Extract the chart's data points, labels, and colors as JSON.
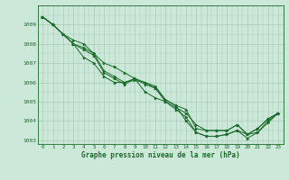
{
  "bg_color": "#cce8d8",
  "grid_color": "#aaccbb",
  "line_color": "#1a6b2a",
  "xlabel": "Graphe pression niveau de la mer (hPa)",
  "ylim": [
    1002.8,
    1009.6
  ],
  "xlim": [
    -0.5,
    23.5
  ],
  "yticks": [
    1003,
    1004,
    1005,
    1006,
    1007,
    1008,
    1009
  ],
  "xticks": [
    0,
    1,
    2,
    3,
    4,
    5,
    6,
    7,
    8,
    9,
    10,
    11,
    12,
    13,
    14,
    15,
    16,
    17,
    18,
    19,
    20,
    21,
    22,
    23
  ],
  "series": [
    [
      1009.4,
      1009.0,
      1008.5,
      1008.0,
      1007.8,
      1007.5,
      1006.6,
      1006.3,
      1006.0,
      1006.2,
      1006.0,
      1005.8,
      1005.1,
      1004.8,
      1004.6,
      1003.6,
      1003.5,
      1003.5,
      1003.5,
      1003.8,
      1003.3,
      1003.6,
      1004.1,
      1004.4
    ],
    [
      1009.4,
      1009.0,
      1008.5,
      1008.0,
      1007.7,
      1007.4,
      1006.5,
      1006.2,
      1005.9,
      1006.2,
      1005.9,
      1005.7,
      1005.0,
      1004.6,
      1004.2,
      1003.4,
      1003.2,
      1003.2,
      1003.3,
      1003.5,
      1003.1,
      1003.4,
      1003.9,
      1004.4
    ],
    [
      1009.4,
      1009.0,
      1008.5,
      1008.0,
      1007.3,
      1007.0,
      1006.3,
      1006.0,
      1006.0,
      1006.1,
      1006.0,
      1005.7,
      1005.1,
      1004.8,
      1004.0,
      1003.4,
      1003.2,
      1003.2,
      1003.3,
      1003.5,
      1003.3,
      1003.4,
      1004.0,
      1004.4
    ],
    [
      1009.4,
      1009.0,
      1008.5,
      1008.2,
      1008.0,
      1007.5,
      1007.0,
      1006.8,
      1006.5,
      1006.2,
      1005.5,
      1005.2,
      1005.0,
      1004.7,
      1004.4,
      1003.8,
      1003.5,
      1003.5,
      1003.5,
      1003.8,
      1003.3,
      1003.6,
      1004.1,
      1004.4
    ]
  ]
}
